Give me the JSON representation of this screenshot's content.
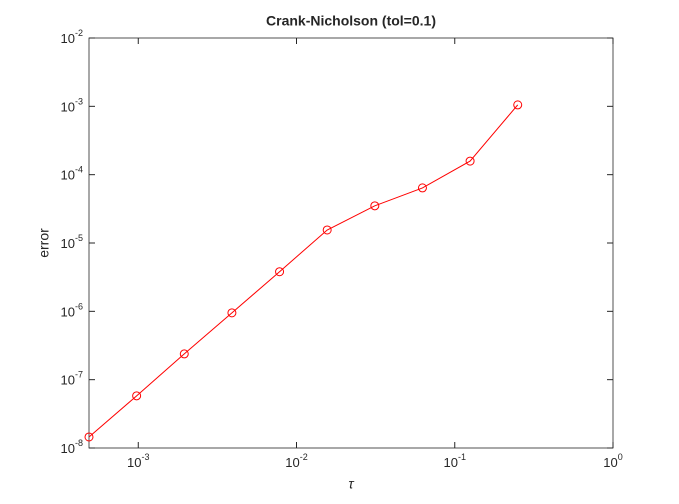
{
  "chart_data": {
    "type": "line",
    "title": "Crank-Nicholson (tol=0.1)",
    "x_label": "τ",
    "y_label": "error",
    "x": [
      0.00048828125,
      0.0009765625,
      0.001953125,
      0.00390625,
      0.0078125,
      0.015625,
      0.03125,
      0.0625,
      0.125,
      0.25
    ],
    "values": [
      1.45e-08,
      5.8e-08,
      2.38e-07,
      9.5e-07,
      3.8e-06,
      1.55e-05,
      3.5e-05,
      6.4e-05,
      0.000158,
      0.00105
    ],
    "color": "#ff0000",
    "marker": "circle",
    "xscale": "log",
    "yscale": "log",
    "xlim": [
      0.00048828125,
      1
    ],
    "ylim": [
      1e-08,
      0.01
    ],
    "xticks": [
      {
        "value": 0.001,
        "label": "10-3"
      },
      {
        "value": 0.01,
        "label": "10-2"
      },
      {
        "value": 0.1,
        "label": "10-1"
      },
      {
        "value": 1,
        "label": "100"
      }
    ],
    "yticks": [
      {
        "value": 1e-08,
        "label": "10-8"
      },
      {
        "value": 1e-07,
        "label": "10-7"
      },
      {
        "value": 1e-06,
        "label": "10-6"
      },
      {
        "value": 1e-05,
        "label": "10-5"
      },
      {
        "value": 0.0001,
        "label": "10-4"
      },
      {
        "value": 0.001,
        "label": "10-3"
      },
      {
        "value": 0.01,
        "label": "10-2"
      }
    ],
    "grid": false
  }
}
